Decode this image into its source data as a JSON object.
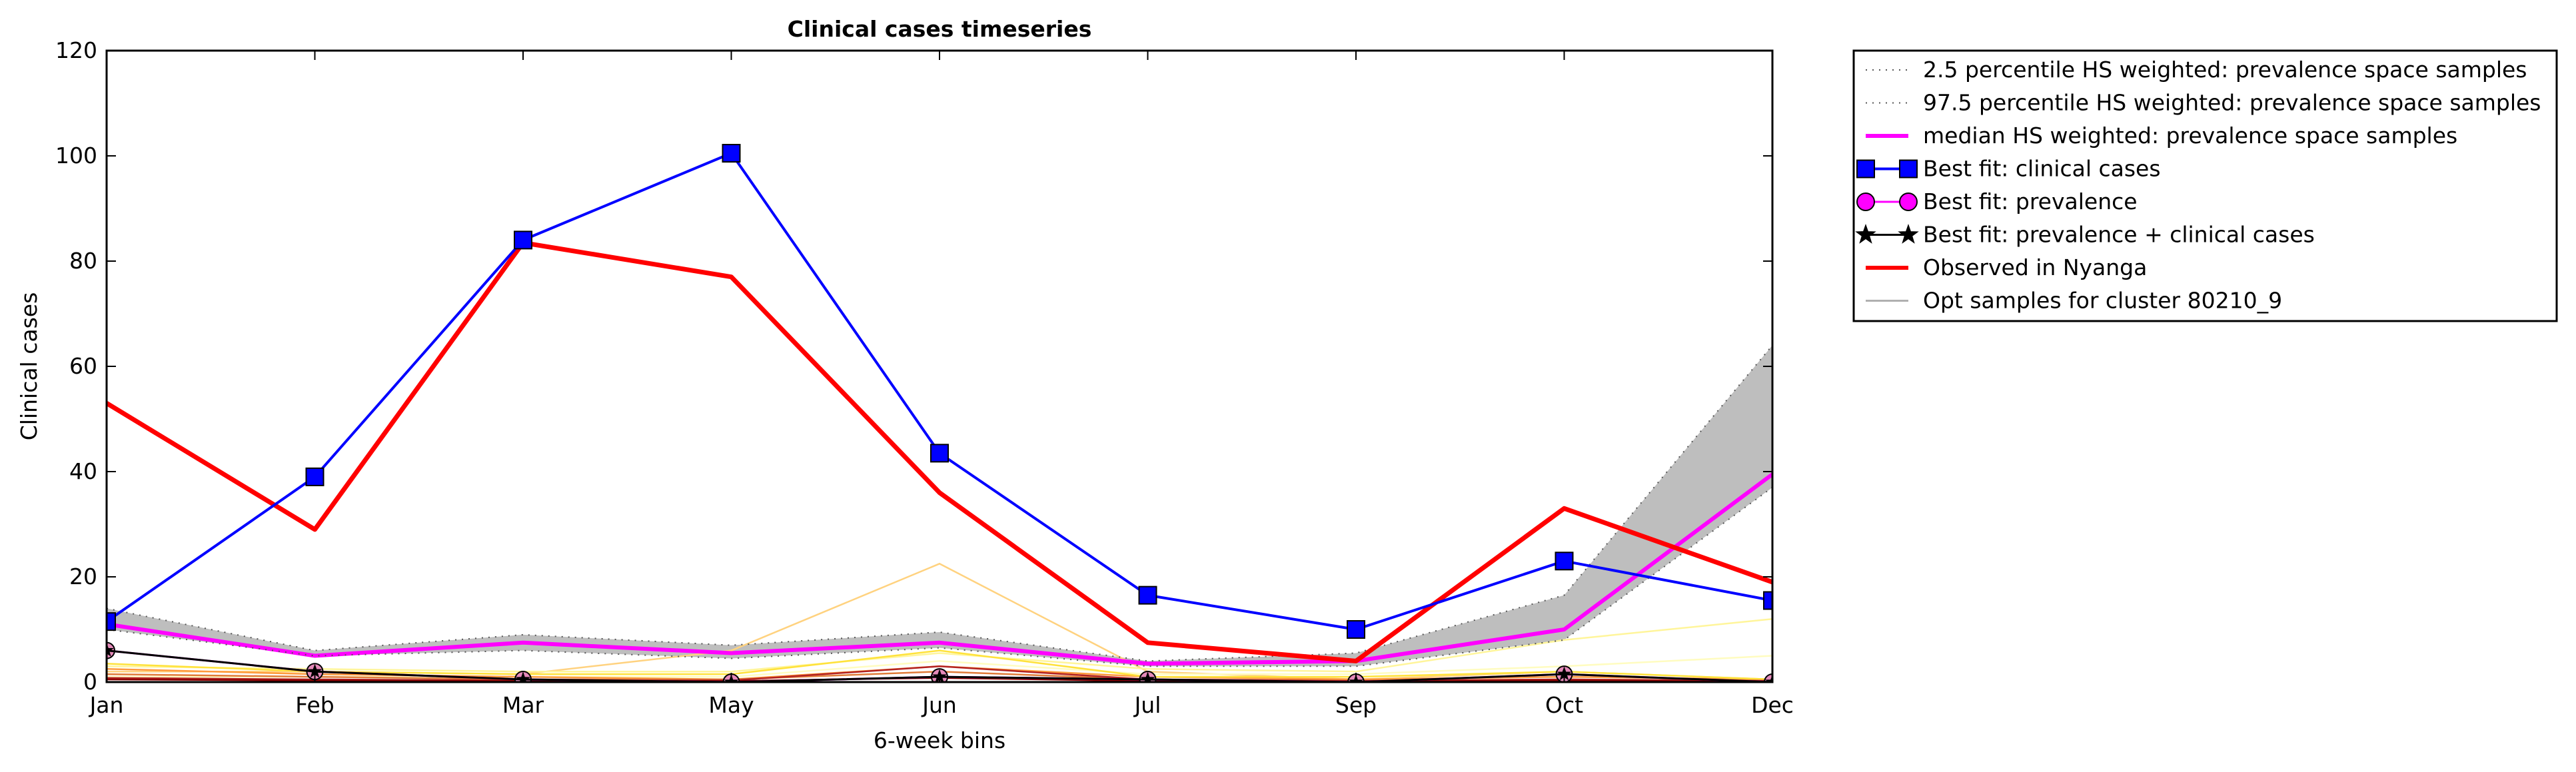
{
  "chart_data": {
    "type": "line",
    "title": "Clinical cases timeseries",
    "xlabel": "6-week bins",
    "ylabel": "Clinical cases",
    "categories": [
      "Jan",
      "Feb",
      "Mar",
      "May",
      "Jun",
      "Jul",
      "Sep",
      "Oct",
      "Dec"
    ],
    "ylim": [
      0,
      120
    ],
    "yticks": [
      0,
      20,
      40,
      60,
      80,
      100,
      120
    ],
    "grid": false,
    "legend_position": "outside-top-right",
    "band": {
      "lower": [
        10.0,
        5.0,
        6.0,
        4.5,
        6.5,
        3.0,
        3.0,
        8.0,
        37.0
      ],
      "upper": [
        14.0,
        6.0,
        9.0,
        7.0,
        9.5,
        4.0,
        5.5,
        16.5,
        64.0
      ],
      "color": "#bebebe"
    },
    "series": [
      {
        "name": "2.5 percentile HS weighted: prevalence space samples",
        "style": "dotted",
        "color": "#555555",
        "values": [
          10.0,
          5.0,
          6.0,
          4.5,
          6.5,
          3.0,
          3.0,
          8.0,
          37.0
        ]
      },
      {
        "name": "97.5 percentile HS weighted: prevalence space samples",
        "style": "dotted",
        "color": "#555555",
        "values": [
          14.0,
          6.0,
          9.0,
          7.0,
          9.5,
          4.0,
          5.5,
          16.5,
          64.0
        ]
      },
      {
        "name": "median HS weighted: prevalence space samples",
        "style": "solid",
        "color": "#ff00ff",
        "values": [
          11.0,
          5.0,
          7.5,
          5.5,
          7.5,
          3.5,
          4.0,
          10.0,
          39.5
        ]
      },
      {
        "name": "Best fit: clinical cases",
        "style": "solid",
        "marker": "square",
        "color": "#0000ff",
        "values": [
          11.5,
          39.0,
          84.0,
          100.5,
          43.5,
          16.5,
          10.0,
          23.0,
          15.5
        ]
      },
      {
        "name": "Best fit: prevalence",
        "style": "solid",
        "marker": "circle",
        "color": "#ff00ff",
        "values": [
          6.0,
          2.0,
          0.5,
          0.0,
          1.0,
          0.5,
          0.0,
          1.5,
          0.0
        ]
      },
      {
        "name": "Best fit: prevalence + clinical cases",
        "style": "solid",
        "marker": "star",
        "color": "#000000",
        "values": [
          6.0,
          2.0,
          0.5,
          0.0,
          1.0,
          0.5,
          0.0,
          1.5,
          0.0
        ]
      },
      {
        "name": "Observed in Nyanga",
        "style": "solid",
        "color": "#ff0000",
        "values": [
          53.0,
          29.0,
          83.5,
          77.0,
          36.0,
          7.5,
          4.0,
          33.0,
          19.0
        ]
      },
      {
        "name": "Opt samples for cluster 80210_9",
        "style": "solid",
        "color": "#b0b0b0",
        "values": [
          10.5,
          5.0,
          7.0,
          5.0,
          7.0,
          3.5,
          3.5,
          9.0,
          38.0
        ]
      }
    ],
    "opt_samples": [
      {
        "color": "#ffd27f",
        "values": [
          2.0,
          2.0,
          1.5,
          6.0,
          22.5,
          2.0,
          0.5,
          2.0,
          0.5
        ]
      },
      {
        "color": "#fff59a",
        "values": [
          3.0,
          2.5,
          2.0,
          2.0,
          5.5,
          2.5,
          2.0,
          8.0,
          12.0
        ]
      },
      {
        "color": "#fffcc0",
        "values": [
          1.0,
          1.0,
          1.0,
          1.0,
          4.0,
          1.5,
          1.5,
          3.0,
          5.0
        ]
      },
      {
        "color": "#ff9a3c",
        "values": [
          2.5,
          1.5,
          1.0,
          0.5,
          3.0,
          1.0,
          0.5,
          1.0,
          0.5
        ]
      },
      {
        "color": "#ffe23a",
        "values": [
          3.5,
          2.0,
          1.5,
          1.5,
          6.0,
          1.0,
          1.0,
          2.0,
          0.5
        ]
      },
      {
        "color": "#e07b39",
        "values": [
          1.5,
          1.0,
          0.5,
          0.5,
          2.0,
          0.5,
          0.3,
          0.5,
          0.3
        ]
      },
      {
        "color": "#b22222",
        "values": [
          0.8,
          0.5,
          0.3,
          0.3,
          3.0,
          0.5,
          0.2,
          0.5,
          0.2
        ]
      },
      {
        "color": "#8b0000",
        "values": [
          0.5,
          0.3,
          0.2,
          0.2,
          0.8,
          0.2,
          0.1,
          0.3,
          0.1
        ]
      },
      {
        "color": "#000000",
        "values": [
          6.0,
          2.0,
          0.5,
          0.0,
          1.0,
          0.5,
          0.0,
          1.5,
          0.0
        ]
      }
    ]
  }
}
